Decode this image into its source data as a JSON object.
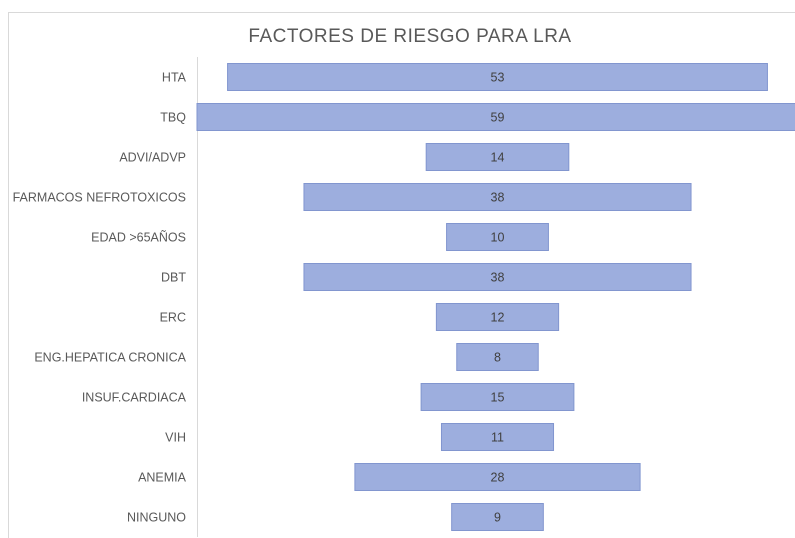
{
  "chart_data": {
    "type": "funnel",
    "title": "FACTORES  DE  RIESGO  PARA  LRA",
    "categories": [
      "HTA",
      "TBQ",
      "ADVI/ADVP",
      "FARMACOS NEFROTOXICOS",
      "EDAD >65AÑOS",
      "DBT",
      "ERC",
      "ENG.HEPATICA CRONICA",
      "INSUF.CARDIACA",
      "VIH",
      "ANEMIA",
      "NINGUNO"
    ],
    "values": [
      53,
      59,
      14,
      38,
      10,
      38,
      12,
      8,
      15,
      11,
      28,
      9
    ],
    "color": "#9daede"
  }
}
